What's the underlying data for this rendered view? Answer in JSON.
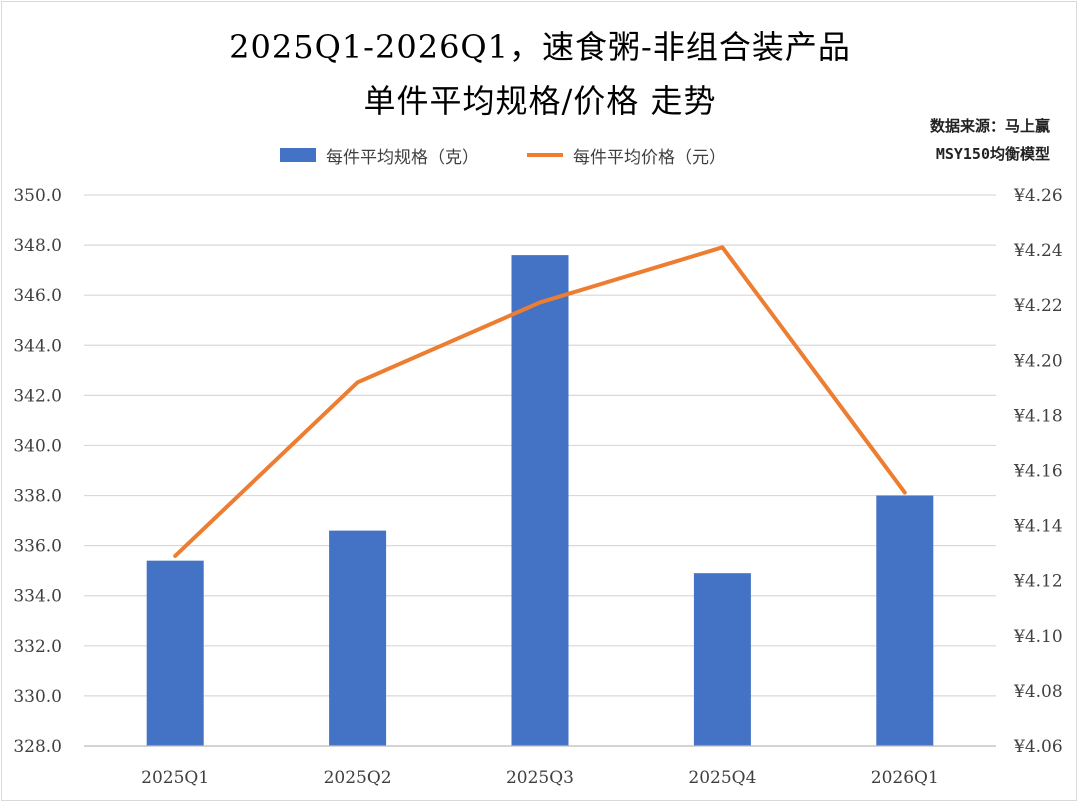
{
  "chart_data": {
    "type": "bar",
    "title": "2025Q1-2026Q1，速食粥-非组合装产品",
    "subtitle": "单件平均规格/价格 走势",
    "source_line1": "数据来源：马上赢",
    "source_line2": "MSY150均衡模型",
    "categories": [
      "2025Q1",
      "2025Q2",
      "2025Q3",
      "2025Q4",
      "2026Q1"
    ],
    "series": [
      {
        "name": "每件平均规格（克）",
        "type": "bar",
        "axis": "left",
        "color": "#4472C4",
        "values": [
          335.4,
          336.6,
          347.6,
          334.9,
          338.0
        ]
      },
      {
        "name": "每件平均价格（元）",
        "type": "line",
        "axis": "right",
        "color": "#ED7D31",
        "values": [
          4.129,
          4.192,
          4.221,
          4.241,
          4.152
        ]
      }
    ],
    "ylim_left": [
      328.0,
      350.0
    ],
    "yticks_left": [
      "328.0",
      "330.0",
      "332.0",
      "334.0",
      "336.0",
      "338.0",
      "340.0",
      "342.0",
      "344.0",
      "346.0",
      "348.0",
      "350.0"
    ],
    "ylim_right": [
      4.06,
      4.26
    ],
    "yticks_right": [
      "¥4.06",
      "¥4.08",
      "¥4.10",
      "¥4.12",
      "¥4.14",
      "¥4.16",
      "¥4.18",
      "¥4.20",
      "¥4.22",
      "¥4.24",
      "¥4.26"
    ],
    "grid": true,
    "legend_position": "top"
  }
}
